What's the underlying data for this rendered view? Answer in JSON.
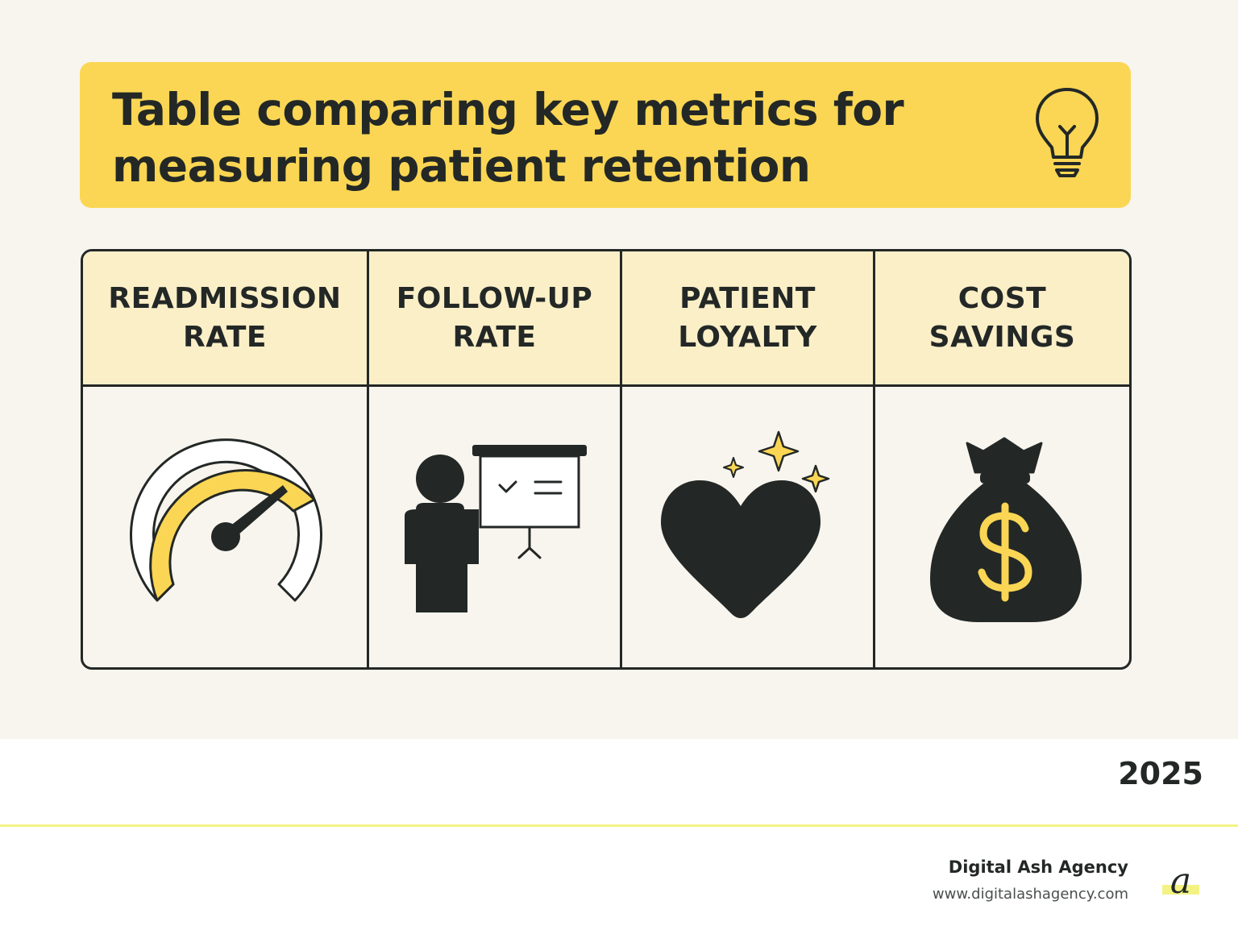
{
  "title": "Table comparing key metrics for measuring patient retention",
  "columns": [
    {
      "label": "READMISSION RATE",
      "icon": "speedometer-icon"
    },
    {
      "label": "FOLLOW-UP RATE",
      "icon": "presentation-icon"
    },
    {
      "label": "PATIENT LOYALTY",
      "icon": "heart-sparkle-icon"
    },
    {
      "label": "COST SAVINGS",
      "icon": "money-bag-icon"
    }
  ],
  "year": "2025",
  "footer": {
    "agency_name": "Digital Ash Agency",
    "agency_url": "www.digitalashagency.com",
    "logo_letter": "a"
  },
  "colors": {
    "accent": "#fad654",
    "dark": "#232826",
    "header_bg": "#fbefc8",
    "background": "#f8f5ee"
  }
}
